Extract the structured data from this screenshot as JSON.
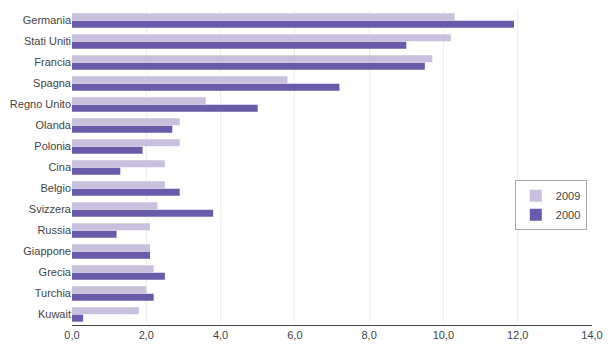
{
  "chart_data": {
    "type": "bar",
    "orientation": "horizontal",
    "categories": [
      "Germania",
      "Stati Uniti",
      "Francia",
      "Spagna",
      "Regno Unito",
      "Olanda",
      "Polonia",
      "Cina",
      "Belgio",
      "Svizzera",
      "Russia",
      "Giappone",
      "Grecia",
      "Turchia",
      "Kuwait"
    ],
    "series": [
      {
        "name": "2009",
        "color": "#c8c0dc",
        "values": [
          10.3,
          10.2,
          9.7,
          5.8,
          3.6,
          2.9,
          2.9,
          2.5,
          2.5,
          2.3,
          2.1,
          2.1,
          2.2,
          2.0,
          1.8
        ]
      },
      {
        "name": "2000",
        "color": "#6a5aaa",
        "values": [
          11.9,
          9.0,
          9.5,
          7.2,
          5.0,
          2.7,
          1.9,
          1.3,
          2.9,
          3.8,
          1.2,
          2.1,
          2.5,
          2.2,
          0.3
        ]
      }
    ],
    "xlim": [
      0,
      14
    ],
    "xticks": [
      {
        "value": 0.0,
        "label": "0,0"
      },
      {
        "value": 2.0,
        "label": "2,0"
      },
      {
        "value": 4.0,
        "label": "4,0"
      },
      {
        "value": 6.0,
        "label": "6,0"
      },
      {
        "value": 8.0,
        "label": "8,0"
      },
      {
        "value": 10.0,
        "label": "10,0"
      },
      {
        "value": 12.0,
        "label": "12,0"
      },
      {
        "value": 14.0,
        "label": "14,0"
      }
    ],
    "grid": true,
    "legend": "right"
  }
}
